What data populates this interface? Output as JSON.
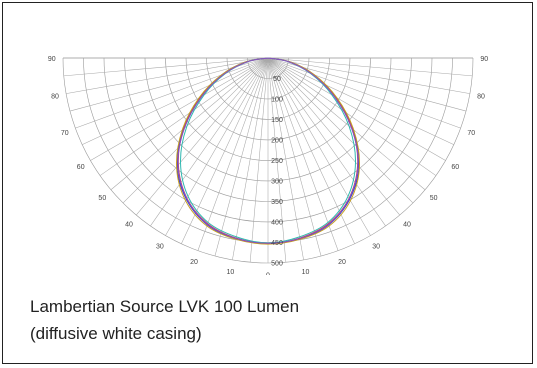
{
  "caption": {
    "line1": "Lambertian Source LVK 100 Lumen",
    "line2": "(diffusive white casing)"
  },
  "chart_data": {
    "type": "polar",
    "title": "",
    "angle_unit": "deg",
    "angle_ticks": [
      0,
      10,
      20,
      30,
      40,
      50,
      60,
      70,
      80,
      90
    ],
    "angle_labels_left": [
      "10",
      "20",
      "30",
      "40",
      "50",
      "60",
      "70",
      "80",
      "90"
    ],
    "angle_labels_right": [
      "10",
      "20",
      "30",
      "40",
      "50",
      "60",
      "70",
      "80",
      "90"
    ],
    "center_label": "0",
    "radial_ticks": [
      50,
      100,
      150,
      200,
      250,
      300,
      350,
      400,
      450,
      500
    ],
    "radial_labels": [
      "50",
      "100",
      "150",
      "200",
      "250",
      "300",
      "350",
      "400",
      "450",
      "500"
    ],
    "rlim": [
      0,
      500
    ],
    "grid": true,
    "angles": [
      0,
      10,
      20,
      30,
      40,
      50,
      60,
      70,
      80,
      90
    ],
    "series": [
      {
        "color": "#2a3fcf",
        "values": [
          453,
          448,
          433,
          398,
          345,
          270,
          192,
          120,
          55,
          0
        ]
      },
      {
        "color": "#c44060",
        "values": [
          452,
          446,
          430,
          395,
          340,
          268,
          188,
          116,
          52,
          0
        ]
      },
      {
        "color": "#c8a020",
        "values": [
          454,
          449,
          436,
          402,
          347,
          273,
          194,
          121,
          56,
          0
        ]
      },
      {
        "color": "#30b8b0",
        "values": [
          451,
          443,
          427,
          390,
          332,
          258,
          180,
          110,
          48,
          0
        ]
      },
      {
        "color": "#8a50c0",
        "values": [
          452,
          447,
          432,
          396,
          342,
          266,
          186,
          114,
          50,
          0
        ]
      }
    ]
  }
}
